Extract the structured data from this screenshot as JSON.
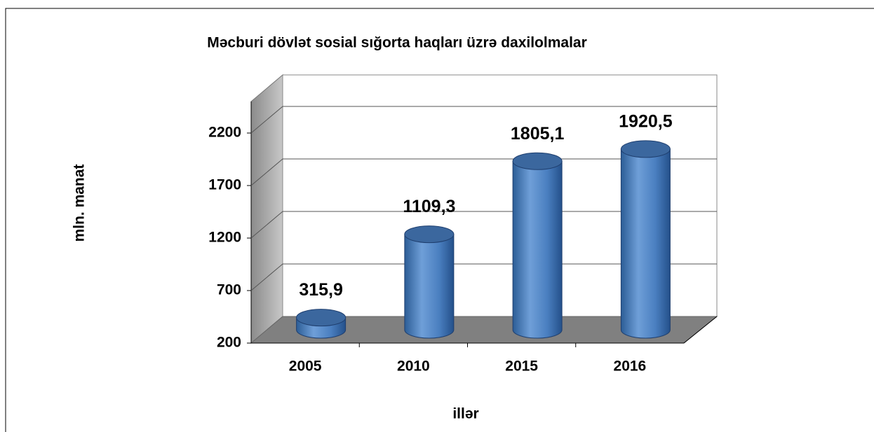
{
  "chart_data": {
    "type": "bar3d",
    "title": "Məcburi dövlət sosial sığorta haqları üzrə daxilolmalar",
    "x_label": "illər",
    "y_label": "mln. manat",
    "categories": [
      "2005",
      "2010",
      "2015",
      "2016"
    ],
    "values": [
      315.9,
      1109.3,
      1805.1,
      1920.5
    ],
    "value_labels": [
      "315,9",
      "1109,3",
      "1805,1",
      "1920,5"
    ],
    "color": "#4f81bd",
    "ylim": [
      200,
      2500
    ],
    "yticks": [
      200,
      700,
      1200,
      1700,
      2200
    ],
    "grid": true
  }
}
